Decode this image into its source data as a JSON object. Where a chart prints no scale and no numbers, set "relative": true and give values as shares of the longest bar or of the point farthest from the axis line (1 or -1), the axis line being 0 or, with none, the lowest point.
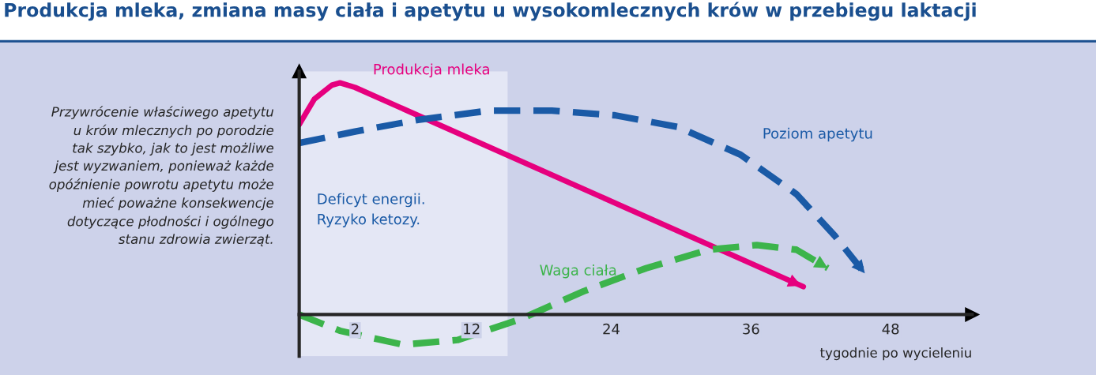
{
  "chart_data": {
    "type": "line",
    "relative": true,
    "title": "Produkcja mleka, zmiana masy ciała i apetytu u wysokomlecznych krów w przebiegu laktacji",
    "xlabel": "tygodnie po wycieleniu",
    "xlim": [
      -2.8,
      55
    ],
    "xticks": [
      2,
      12,
      24,
      36,
      48
    ],
    "annotations": [
      "Przywrócenie właściwego apetytu\nu krów mlecznych po porodzie\ntak szybko, jak to jest możliwe\njest wyzwaniem, ponieważ każde\nopóźnienie powrotu apetytu może\nmieć poważne konsekwencje\ndotyczące płodności i ogólnego\nstanu zdrowia zwierząt."
    ],
    "bands": [
      {
        "axis": "x",
        "from": -2.8,
        "to": 15.1,
        "label": "Deficyt energii.\nRyzyko ketozy.",
        "color": "#e4e7f5"
      }
    ],
    "grid": false,
    "series": [
      {
        "name": "Produkcja mleka",
        "color": "#e6007e",
        "line_style": "solid",
        "x": [
          -2.8,
          -1.5,
          0,
          0.7,
          2,
          40.5
        ],
        "values": [
          0.82,
          0.93,
          0.99,
          1.0,
          0.98,
          0.12
        ]
      },
      {
        "name": "Poziom apetytu",
        "color": "#1a5aa6",
        "line_style": "dashed",
        "x": [
          -2.8,
          2.0,
          7.4,
          13.5,
          18.9,
          24.3,
          29.7,
          35.1,
          39.9,
          43.2,
          45.9
        ],
        "values": [
          0.74,
          0.79,
          0.84,
          0.88,
          0.88,
          0.86,
          0.81,
          0.69,
          0.52,
          0.34,
          0.17
        ]
      },
      {
        "name": "Waga ciała",
        "color": "#3cb44b",
        "line_style": "dashed",
        "x": [
          -2.8,
          0.7,
          6.1,
          10.8,
          16.2,
          21.6,
          27.0,
          32.4,
          36.5,
          39.9,
          42.6
        ],
        "values": [
          0,
          -0.07,
          -0.13,
          -0.11,
          -0.02,
          0.1,
          0.2,
          0.28,
          0.3,
          0.28,
          0.2
        ]
      }
    ]
  }
}
